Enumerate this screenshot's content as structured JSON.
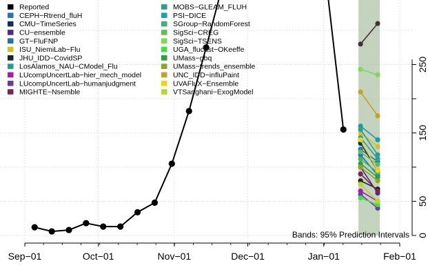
{
  "chart_data": {
    "type": "line",
    "title": "",
    "xlabel": "",
    "ylabel": "",
    "ylim": [
      0,
      350
    ],
    "grid": true,
    "legend_position": "top-left",
    "x_tick_labels": [
      "Sep−01",
      "Oct−01",
      "Nov−01",
      "Dec−01",
      "Jan−01",
      "Feb−01"
    ],
    "y_tick_labels": [
      "0",
      "50",
      "150",
      "250"
    ],
    "y_ticks": [
      0,
      50,
      100,
      150,
      200,
      250,
      300
    ],
    "annotation": "Bands: 95% Prediction Intervals",
    "series": [
      {
        "name": "Reported",
        "color": "#000000",
        "points": [
          {
            "x": "2020-09-05",
            "y": 12
          },
          {
            "x": "2020-09-12",
            "y": 6
          },
          {
            "x": "2020-09-19",
            "y": 8
          },
          {
            "x": "2020-09-26",
            "y": 18
          },
          {
            "x": "2020-10-03",
            "y": 13
          },
          {
            "x": "2020-10-10",
            "y": 13
          },
          {
            "x": "2020-10-17",
            "y": 34
          },
          {
            "x": "2020-10-24",
            "y": 48
          },
          {
            "x": "2020-10-31",
            "y": 105
          },
          {
            "x": "2020-11-07",
            "y": 182
          },
          {
            "x": "2020-11-14",
            "y": 275
          },
          {
            "x": "2020-11-21",
            "y": 370
          }
        ]
      },
      {
        "name": "Reported",
        "color": "#000000",
        "points": [
          {
            "x": "2021-01-02",
            "y": 372
          },
          {
            "x": "2021-01-09",
            "y": 155
          }
        ]
      }
    ],
    "forecast_date": "2021-01-16",
    "band": {
      "x": [
        "2021-01-16",
        "2021-01-23"
      ],
      "ylow": 0,
      "yhigh": 360
    },
    "models": [
      {
        "name": "CEPH−Rtrend_fluH",
        "color": "#1F78B4",
        "y": [
          126,
          108
        ]
      },
      {
        "name": "CMU−TimeSeries",
        "color": "#08306B",
        "y": [
          135,
          95
        ]
      },
      {
        "name": "CU−ensemble",
        "color": "#54278F",
        "y": [
          100,
          62
        ]
      },
      {
        "name": "GT−FluFNP",
        "color": "#2171B5",
        "y": [
          118,
          88
        ]
      },
      {
        "name": "ISU_NiemiLab−Flu",
        "color": "#D4C21A",
        "y": [
          150,
          130
        ]
      },
      {
        "name": "JHU_IDD−CovidSP",
        "color": "#222222",
        "y": [
          80,
          68
        ]
      },
      {
        "name": "LosAlamos_NAU−CModel_Flu",
        "color": "#1B9E9E",
        "y": [
          160,
          140
        ]
      },
      {
        "name": "LUcompUncertLab−hier_mech_model",
        "color": "#B012C0",
        "y": [
          65,
          50
        ]
      },
      {
        "name": "LUcompUncertLab−humanjudgment",
        "color": "#6A3D9A",
        "y": [
          60,
          40
        ]
      },
      {
        "name": "MIGHTE−Nsemble",
        "color": "#7B2452",
        "y": [
          90,
          65
        ]
      },
      {
        "name": "MOBS−GLEAM_FLUH",
        "color": "#2A9D8F",
        "y": [
          155,
          118
        ]
      },
      {
        "name": "PSI−DICE",
        "color": "#20A39E",
        "y": [
          143,
          112
        ]
      },
      {
        "name": "SGroup−RandomForest",
        "color": "#3CB371",
        "y": [
          112,
          92
        ]
      },
      {
        "name": "SigSci−CREG",
        "color": "#66BB55",
        "y": [
          122,
          104
        ]
      },
      {
        "name": "SigSci−TSENS",
        "color": "#7ED957",
        "y": [
          243,
          235
        ]
      },
      {
        "name": "UGA_flucast−OKeeffe",
        "color": "#3EE03E",
        "y": [
          55,
          45
        ]
      },
      {
        "name": "UMass−gbq",
        "color": "#2E9E3E",
        "y": [
          105,
          85
        ]
      },
      {
        "name": "UMass−trends_ensemble",
        "color": "#8AA622",
        "y": [
          100,
          80
        ]
      },
      {
        "name": "UNC_IDD−influPaint",
        "color": "#C8A028",
        "y": [
          210,
          175
        ]
      },
      {
        "name": "UVAFluX−Ensemble",
        "color": "#F2D600",
        "y": [
          140,
          95
        ]
      },
      {
        "name": "VTSanghani−ExogModel",
        "color": "#B5D62A",
        "y": [
          75,
          50
        ]
      }
    ],
    "extra_off_axis": {
      "model_dark_top": {
        "color": "#4A2C3A",
        "y": [
          280,
          310
        ]
      }
    }
  }
}
